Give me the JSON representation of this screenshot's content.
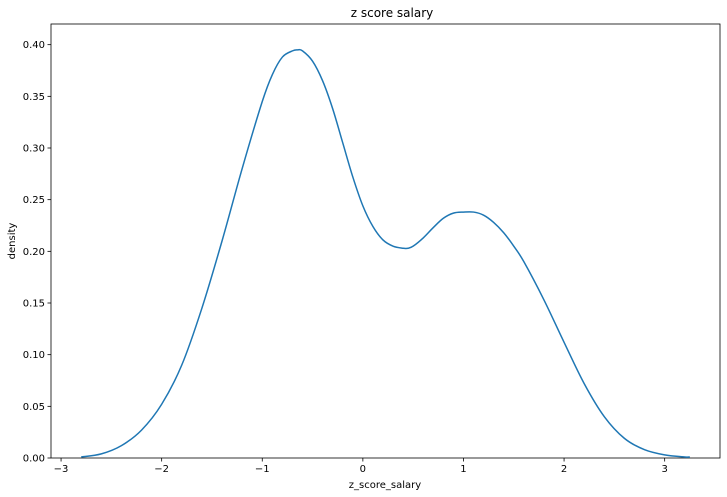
{
  "chart_data": {
    "type": "line",
    "title": "z score salary",
    "xlabel": "z_score_salary",
    "ylabel": "density",
    "xlim": [
      -3.1,
      3.55
    ],
    "ylim": [
      0,
      0.42
    ],
    "xticks": [
      -3,
      -2,
      -1,
      0,
      1,
      2,
      3
    ],
    "xtick_labels": [
      "−3",
      "−2",
      "−1",
      "0",
      "1",
      "2",
      "3"
    ],
    "yticks": [
      0,
      0.05,
      0.1,
      0.15,
      0.2,
      0.25,
      0.3,
      0.35,
      0.4
    ],
    "ytick_labels": [
      "0.00",
      "0.05",
      "0.10",
      "0.15",
      "0.20",
      "0.25",
      "0.30",
      "0.35",
      "0.40"
    ],
    "grid": false,
    "legend": false,
    "line_color": "#1f77b4",
    "series": [
      {
        "x": [
          -2.8,
          -2.6,
          -2.4,
          -2.2,
          -2.0,
          -1.8,
          -1.6,
          -1.4,
          -1.2,
          -1.0,
          -0.9,
          -0.8,
          -0.7,
          -0.65,
          -0.6,
          -0.5,
          -0.4,
          -0.3,
          -0.2,
          -0.1,
          0.0,
          0.1,
          0.2,
          0.3,
          0.4,
          0.45,
          0.5,
          0.6,
          0.7,
          0.8,
          0.9,
          1.0,
          1.1,
          1.2,
          1.3,
          1.4,
          1.5,
          1.6,
          1.8,
          2.0,
          2.2,
          2.4,
          2.6,
          2.8,
          3.0,
          3.2,
          3.25
        ],
        "y": [
          0.001,
          0.004,
          0.012,
          0.027,
          0.052,
          0.09,
          0.145,
          0.21,
          0.28,
          0.345,
          0.371,
          0.388,
          0.394,
          0.395,
          0.394,
          0.384,
          0.365,
          0.338,
          0.305,
          0.272,
          0.244,
          0.224,
          0.211,
          0.205,
          0.203,
          0.203,
          0.205,
          0.213,
          0.223,
          0.232,
          0.237,
          0.238,
          0.238,
          0.235,
          0.228,
          0.218,
          0.205,
          0.19,
          0.153,
          0.112,
          0.072,
          0.04,
          0.019,
          0.008,
          0.003,
          0.001,
          0.001
        ]
      }
    ]
  }
}
